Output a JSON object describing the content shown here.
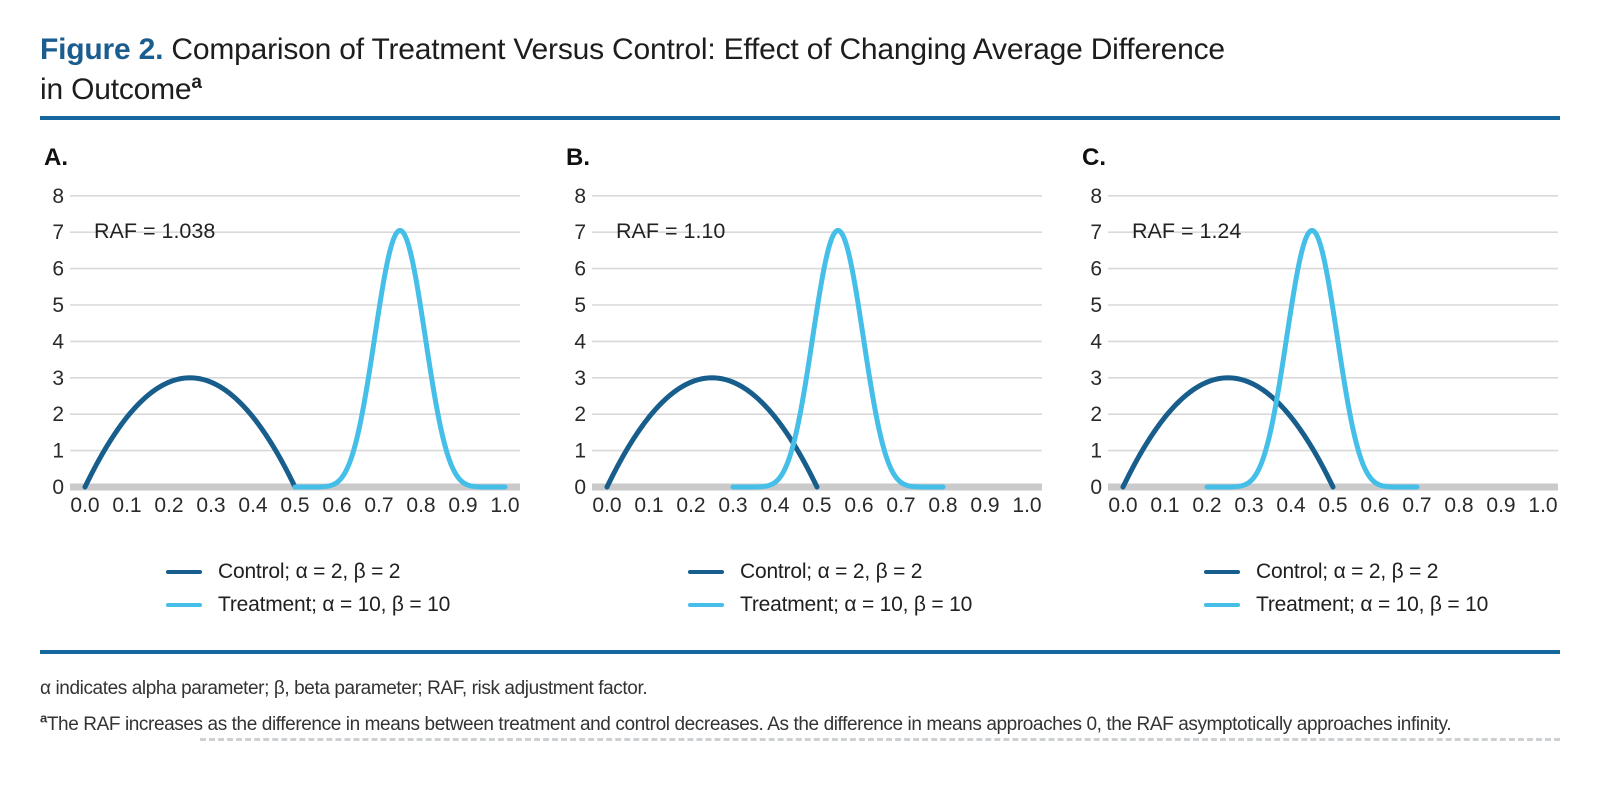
{
  "figure": {
    "label": "Figure 2.",
    "title_line1_rest": " Comparison of Treatment Versus Control: Effect of Changing Average Difference",
    "title_line2": "in Outcome",
    "title_superscript": "a"
  },
  "colors": {
    "control": "#175e8c",
    "treatment": "#45bee8",
    "grid": "#d9d9d9",
    "baseline": "#cacaca",
    "axis_text": "#2a2a2a",
    "annotation_text": "#222222",
    "accent_rule": "#1766a0",
    "figure_label_blue": "#1b5d8e"
  },
  "legend": {
    "control_label": "Control; α = 2, β = 2",
    "treatment_label": "Treatment; α = 10, β = 10"
  },
  "footnotes": {
    "abbreviations": "α indicates alpha parameter; β, beta parameter; RAF, risk adjustment factor.",
    "note_marker": "a",
    "note_text": "The RAF increases as the difference in means between treatment and control decreases. As the difference in means approaches 0, the RAF asymptotically approaches infinity."
  },
  "chart_data": [
    {
      "type": "line",
      "panel_label": "A.",
      "annotation": "RAF = 1.038",
      "xlim": [
        0,
        1
      ],
      "ylim": [
        0,
        8
      ],
      "xticks": [
        "0.0",
        "0.1",
        "0.2",
        "0.3",
        "0.4",
        "0.5",
        "0.6",
        "0.7",
        "0.8",
        "0.9",
        "1.0"
      ],
      "yticks": [
        0,
        1,
        2,
        3,
        4,
        5,
        6,
        7,
        8
      ],
      "grid": true,
      "legend_position": "below",
      "series": [
        {
          "name": "Control; α = 2, β = 2",
          "alpha": 2,
          "beta": 2,
          "range": [
            0.0,
            0.5
          ],
          "peak_x": 0.25,
          "peak_y": 3.0,
          "color_key": "control"
        },
        {
          "name": "Treatment; α = 10, β = 10",
          "alpha": 10,
          "beta": 10,
          "range": [
            0.5,
            1.0
          ],
          "peak_x": 0.75,
          "peak_y": 7.05,
          "color_key": "treatment"
        }
      ]
    },
    {
      "type": "line",
      "panel_label": "B.",
      "annotation": "RAF = 1.10",
      "xlim": [
        0,
        1
      ],
      "ylim": [
        0,
        8
      ],
      "xticks": [
        "0.0",
        "0.1",
        "0.2",
        "0.3",
        "0.4",
        "0.5",
        "0.6",
        "0.7",
        "0.8",
        "0.9",
        "1.0"
      ],
      "yticks": [
        0,
        1,
        2,
        3,
        4,
        5,
        6,
        7,
        8
      ],
      "grid": true,
      "legend_position": "below",
      "series": [
        {
          "name": "Control; α = 2, β = 2",
          "alpha": 2,
          "beta": 2,
          "range": [
            0.0,
            0.5
          ],
          "peak_x": 0.25,
          "peak_y": 3.0,
          "color_key": "control"
        },
        {
          "name": "Treatment; α = 10, β = 10",
          "alpha": 10,
          "beta": 10,
          "range": [
            0.3,
            0.8
          ],
          "peak_x": 0.55,
          "peak_y": 7.05,
          "color_key": "treatment"
        }
      ]
    },
    {
      "type": "line",
      "panel_label": "C.",
      "annotation": "RAF = 1.24",
      "xlim": [
        0,
        1
      ],
      "ylim": [
        0,
        8
      ],
      "xticks": [
        "0.0",
        "0.1",
        "0.2",
        "0.3",
        "0.4",
        "0.5",
        "0.6",
        "0.7",
        "0.8",
        "0.9",
        "1.0"
      ],
      "yticks": [
        0,
        1,
        2,
        3,
        4,
        5,
        6,
        7,
        8
      ],
      "grid": true,
      "legend_position": "below",
      "series": [
        {
          "name": "Control; α = 2, β = 2",
          "alpha": 2,
          "beta": 2,
          "range": [
            0.0,
            0.5
          ],
          "peak_x": 0.25,
          "peak_y": 3.0,
          "color_key": "control"
        },
        {
          "name": "Treatment; α = 10, β = 10",
          "alpha": 10,
          "beta": 10,
          "range": [
            0.2,
            0.7
          ],
          "peak_x": 0.45,
          "peak_y": 7.05,
          "color_key": "treatment"
        }
      ]
    }
  ]
}
